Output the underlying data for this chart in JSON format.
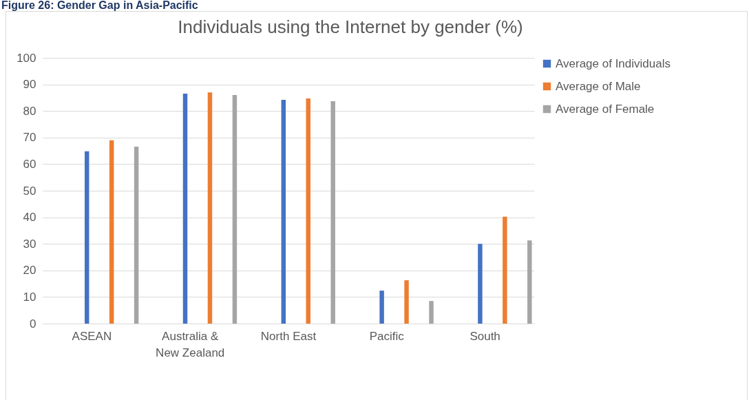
{
  "chart_data": {
    "type": "bar",
    "title": "Individuals using the Internet by gender (%)",
    "annotations": [
      "Figure 26: Gender Gap in Asia-Pacific"
    ],
    "categories": [
      "ASEAN",
      "Australia & New Zealand",
      "North East",
      "Pacific",
      "South"
    ],
    "series": [
      {
        "name": "Average of Individuals",
        "color": "#4472c4",
        "values": [
          64.8,
          86.5,
          84.2,
          12.4,
          30.0
        ]
      },
      {
        "name": "Average of Male",
        "color": "#ed7d31",
        "values": [
          69.0,
          87.0,
          84.7,
          16.3,
          40.2
        ]
      },
      {
        "name": "Average of Female",
        "color": "#a5a5a5",
        "values": [
          66.6,
          86.0,
          83.7,
          8.5,
          31.3
        ]
      }
    ],
    "ylim": [
      0,
      100
    ],
    "yticks": [
      0,
      10,
      20,
      30,
      40,
      50,
      60,
      70,
      80,
      90,
      100
    ],
    "grid": "y",
    "legend": "right"
  }
}
